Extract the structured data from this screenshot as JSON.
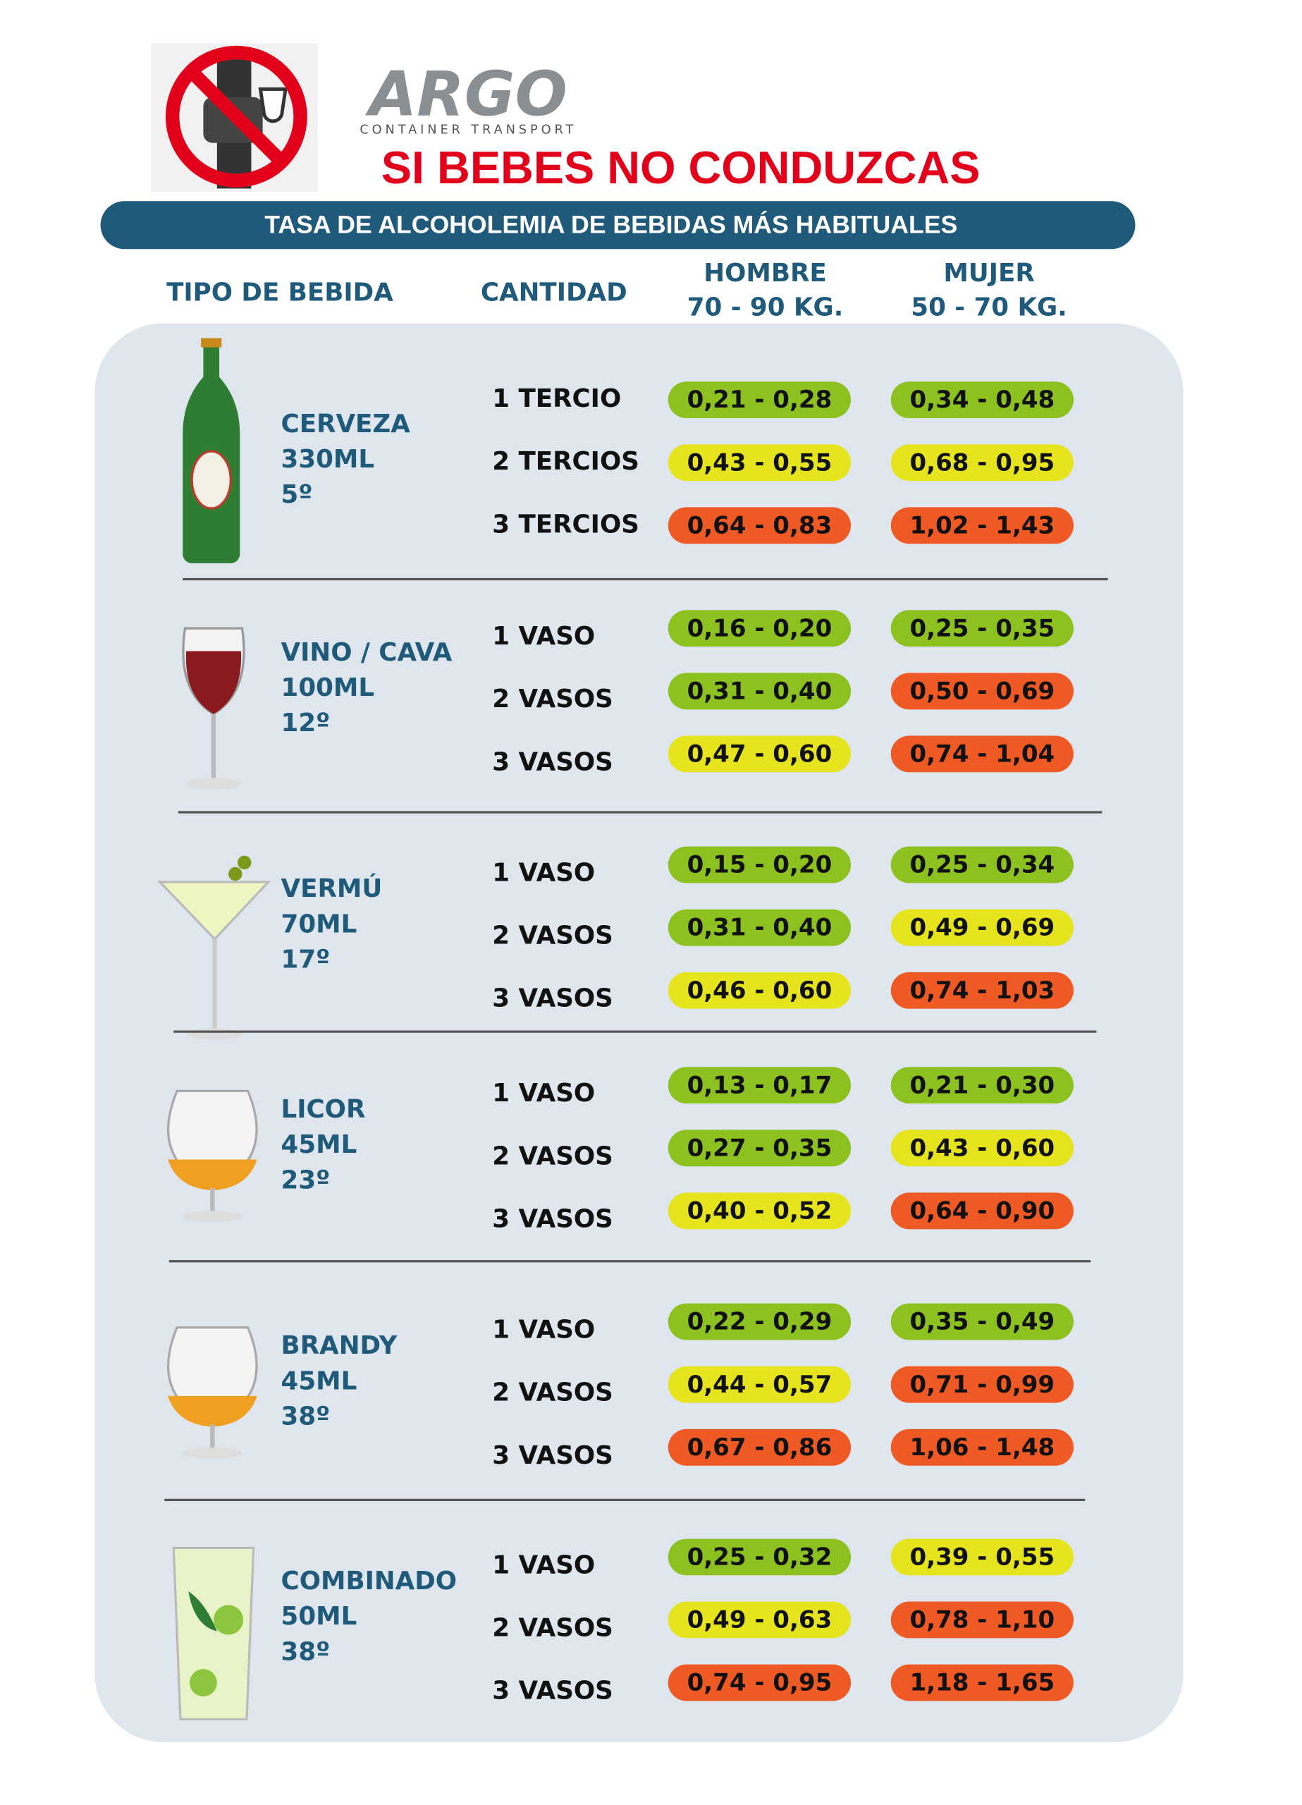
{
  "header": {
    "brand": "ARGO",
    "brand_subtitle": "CONTAINER TRANSPORT",
    "slogan": "SI BEBES NO CONDUZCAS",
    "banner": "TASA DE ALCOHOLEMIA DE  BEBIDAS MÁS HABITUALES"
  },
  "columns": {
    "drink": "TIPO DE BEBIDA",
    "quantity": "CANTIDAD",
    "men": [
      "HOMBRE",
      "70 - 90 KG."
    ],
    "women": [
      "MUJER",
      "50 - 70 KG."
    ]
  },
  "colors": {
    "low": "#8cc11f",
    "medium": "#e6e41c",
    "high": "#ef5a24"
  },
  "drinks": [
    {
      "name": "CERVEZA",
      "volume": "330ML",
      "degree": "5º",
      "rows": [
        {
          "quantity": "1 TERCIO",
          "men": {
            "text": "0,21 - 0,28",
            "level": "low"
          },
          "women": {
            "text": "0,34 - 0,48",
            "level": "low"
          }
        },
        {
          "quantity": "2 TERCIOS",
          "men": {
            "text": "0,43 - 0,55",
            "level": "medium"
          },
          "women": {
            "text": "0,68 - 0,95",
            "level": "medium"
          }
        },
        {
          "quantity": "3 TERCIOS",
          "men": {
            "text": "0,64 - 0,83",
            "level": "high"
          },
          "women": {
            "text": "1,02 - 1,43",
            "level": "high"
          }
        }
      ]
    },
    {
      "name": "VINO / CAVA",
      "volume": "100ML",
      "degree": "12º",
      "rows": [
        {
          "quantity": "1 VASO",
          "men": {
            "text": "0,16 - 0,20",
            "level": "low"
          },
          "women": {
            "text": "0,25 - 0,35",
            "level": "low"
          }
        },
        {
          "quantity": "2 VASOS",
          "men": {
            "text": "0,31 - 0,40",
            "level": "low"
          },
          "women": {
            "text": "0,50 - 0,69",
            "level": "high"
          }
        },
        {
          "quantity": "3 VASOS",
          "men": {
            "text": "0,47 - 0,60",
            "level": "medium"
          },
          "women": {
            "text": "0,74 - 1,04",
            "level": "high"
          }
        }
      ]
    },
    {
      "name": "VERMÚ",
      "volume": "70ML",
      "degree": "17º",
      "rows": [
        {
          "quantity": "1 VASO",
          "men": {
            "text": "0,15 - 0,20",
            "level": "low"
          },
          "women": {
            "text": "0,25 - 0,34",
            "level": "low"
          }
        },
        {
          "quantity": "2 VASOS",
          "men": {
            "text": "0,31 - 0,40",
            "level": "low"
          },
          "women": {
            "text": "0,49 - 0,69",
            "level": "medium"
          }
        },
        {
          "quantity": "3 VASOS",
          "men": {
            "text": "0,46 - 0,60",
            "level": "medium"
          },
          "women": {
            "text": "0,74 - 1,03",
            "level": "high"
          }
        }
      ]
    },
    {
      "name": "LICOR",
      "volume": "45ML",
      "degree": "23º",
      "rows": [
        {
          "quantity": "1 VASO",
          "men": {
            "text": "0,13 - 0,17",
            "level": "low"
          },
          "women": {
            "text": "0,21 - 0,30",
            "level": "low"
          }
        },
        {
          "quantity": "2 VASOS",
          "men": {
            "text": "0,27 - 0,35",
            "level": "low"
          },
          "women": {
            "text": "0,43 - 0,60",
            "level": "medium"
          }
        },
        {
          "quantity": "3 VASOS",
          "men": {
            "text": "0,40 - 0,52",
            "level": "medium"
          },
          "women": {
            "text": "0,64 - 0,90",
            "level": "high"
          }
        }
      ]
    },
    {
      "name": "BRANDY",
      "volume": "45ML",
      "degree": "38º",
      "rows": [
        {
          "quantity": "1 VASO",
          "men": {
            "text": "0,22 - 0,29",
            "level": "low"
          },
          "women": {
            "text": "0,35 - 0,49",
            "level": "low"
          }
        },
        {
          "quantity": "2 VASOS",
          "men": {
            "text": "0,44 - 0,57",
            "level": "medium"
          },
          "women": {
            "text": "0,71 - 0,99",
            "level": "high"
          }
        },
        {
          "quantity": "3 VASOS",
          "men": {
            "text": "0,67 - 0,86",
            "level": "high"
          },
          "women": {
            "text": "1,06 - 1,48",
            "level": "high"
          }
        }
      ]
    },
    {
      "name": "COMBINADO",
      "volume": "50ML",
      "degree": "38º",
      "rows": [
        {
          "quantity": "1 VASO",
          "men": {
            "text": "0,25 - 0,32",
            "level": "low"
          },
          "women": {
            "text": "0,39 - 0,55",
            "level": "medium"
          }
        },
        {
          "quantity": "2 VASOS",
          "men": {
            "text": "0,49 - 0,63",
            "level": "medium"
          },
          "women": {
            "text": "0,78 - 1,10",
            "level": "high"
          }
        },
        {
          "quantity": "3 VASOS",
          "men": {
            "text": "0,74 - 0,95",
            "level": "high"
          },
          "women": {
            "text": "1,18 - 1,65",
            "level": "high"
          }
        }
      ]
    }
  ]
}
